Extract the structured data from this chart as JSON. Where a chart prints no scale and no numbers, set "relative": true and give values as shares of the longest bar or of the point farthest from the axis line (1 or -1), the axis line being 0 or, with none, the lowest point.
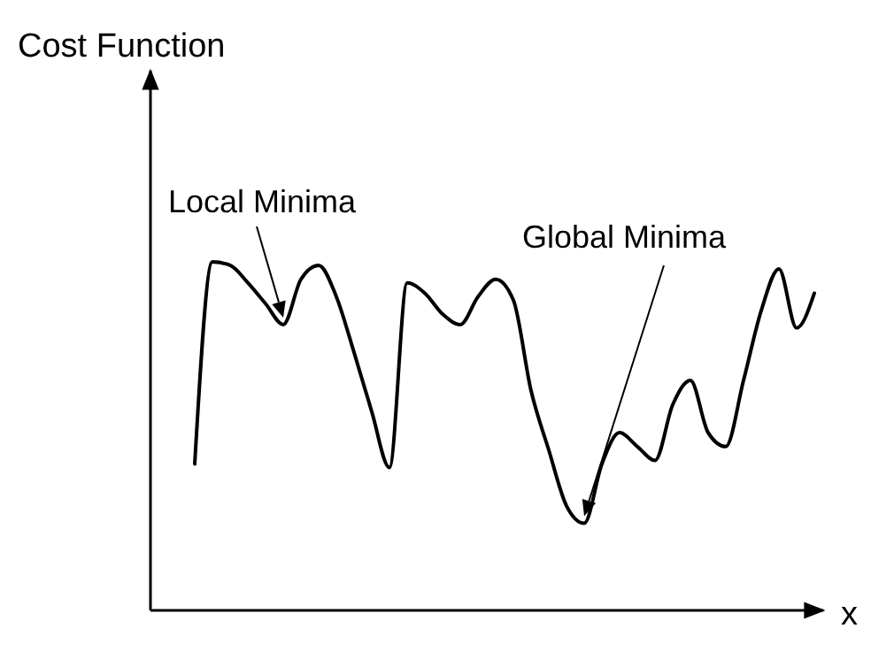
{
  "chart_data": {
    "type": "line",
    "relative": true,
    "xlabel": "x",
    "categories": [
      null,
      null,
      null,
      null,
      null,
      null,
      null,
      null,
      null,
      null,
      null,
      null,
      null,
      null,
      null,
      null,
      null,
      null,
      null,
      null,
      null,
      null,
      null,
      null,
      null,
      null,
      null,
      null,
      null,
      null,
      null,
      null,
      null,
      null,
      null,
      null
    ],
    "series": [
      {
        "color": "#000000",
        "values": [
          0.42,
          1,
          0.99,
          0.94,
          0.88,
          0.82,
          0.95,
          0.99,
          0.9,
          0.74,
          0.57,
          0.41,
          0.94,
          0.91,
          0.85,
          0.82,
          0.9,
          0.95,
          0.89,
          0.63,
          0.46,
          0.3,
          0.25,
          0.42,
          0.51,
          0.47,
          0.43,
          0.59,
          0.66,
          0.51,
          0.47,
          0.66,
          0.86,
          0.98,
          0.81,
          0.91
        ]
      }
    ],
    "annotations": [
      "Cost Function",
      "Local Minima",
      "Global Minima"
    ]
  }
}
